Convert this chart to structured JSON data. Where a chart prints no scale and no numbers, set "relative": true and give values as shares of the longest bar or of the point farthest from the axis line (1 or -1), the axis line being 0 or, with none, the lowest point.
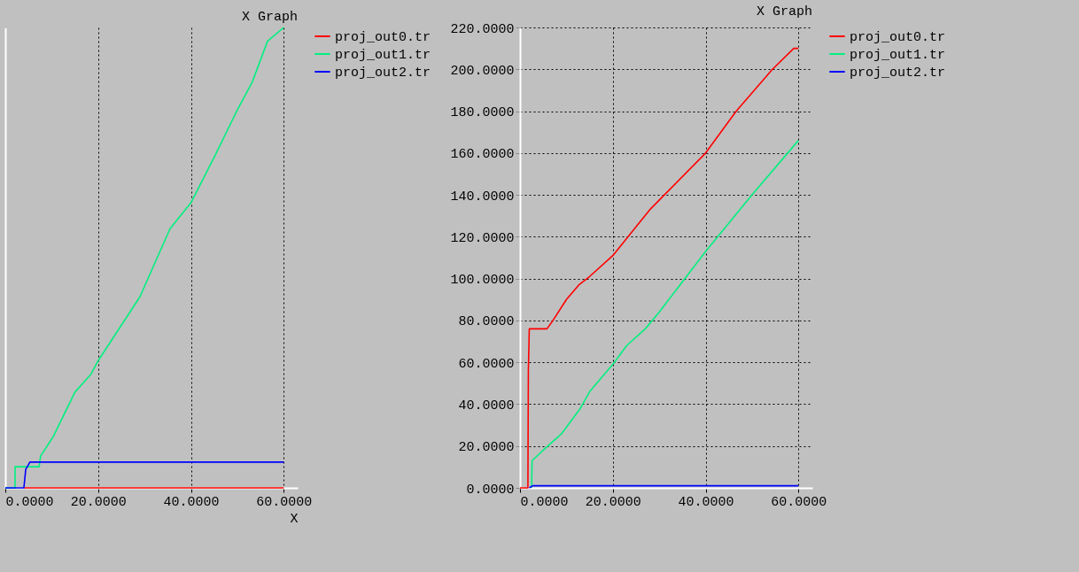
{
  "chart_data": [
    {
      "type": "line",
      "title": "X Graph",
      "xlabel": "X",
      "relative": true,
      "xlim": [
        0,
        63
      ],
      "xticks": [
        {
          "value": 0,
          "label": "0.0000"
        },
        {
          "value": 20,
          "label": "20.0000"
        },
        {
          "value": 40,
          "label": "40.0000"
        },
        {
          "value": 60,
          "label": "60.0000"
        }
      ],
      "grid": "x",
      "legend": "top right",
      "series": [
        {
          "name": "proj_out0.tr",
          "color": "#ff0000",
          "x": [
            4,
            60
          ],
          "values": [
            0,
            0
          ]
        },
        {
          "name": "proj_out1.tr",
          "color": "#00f07f",
          "x": [
            0,
            2.1,
            2.1,
            7.3,
            7.6,
            10.3,
            15,
            18.4,
            20,
            29,
            35.5,
            40,
            45.2,
            50,
            53.2,
            56.5,
            60
          ],
          "values": [
            0,
            0,
            0.046,
            0.046,
            0.069,
            0.111,
            0.208,
            0.246,
            0.276,
            0.415,
            0.563,
            0.619,
            0.722,
            0.821,
            0.881,
            0.97,
            1
          ]
        },
        {
          "name": "proj_out2.tr",
          "color": "#0000ff",
          "x": [
            0,
            4,
            4.4,
            5.3,
            60
          ],
          "values": [
            0,
            0,
            0.04,
            0.056,
            0.056
          ]
        }
      ]
    },
    {
      "type": "line",
      "title": "X Graph",
      "xlim": [
        0,
        63
      ],
      "ylim": [
        0,
        220
      ],
      "xticks": [
        {
          "value": 0,
          "label": "0.0000"
        },
        {
          "value": 20,
          "label": "20.0000"
        },
        {
          "value": 40,
          "label": "40.0000"
        },
        {
          "value": 60,
          "label": "60.0000"
        }
      ],
      "yticks": [
        {
          "value": 0,
          "label": "0.0000"
        },
        {
          "value": 20,
          "label": "20.0000"
        },
        {
          "value": 40,
          "label": "40.0000"
        },
        {
          "value": 60,
          "label": "60.0000"
        },
        {
          "value": 80,
          "label": "80.0000"
        },
        {
          "value": 100,
          "label": "100.0000"
        },
        {
          "value": 120,
          "label": "120.0000"
        },
        {
          "value": 140,
          "label": "140.0000"
        },
        {
          "value": 160,
          "label": "160.0000"
        },
        {
          "value": 180,
          "label": "180.0000"
        },
        {
          "value": 200,
          "label": "200.0000"
        },
        {
          "value": 220,
          "label": "220.0000"
        }
      ],
      "grid": true,
      "legend": "top right",
      "series": [
        {
          "name": "proj_out0.tr",
          "color": "#ff0000",
          "x": [
            0,
            1.7,
            1.8,
            2,
            5.8,
            7.1,
            10,
            12.7,
            15,
            20,
            28,
            40,
            46.6,
            54.4,
            59,
            60
          ],
          "values": [
            0,
            0,
            56,
            76,
            76,
            80,
            90,
            97,
            101,
            111,
            133,
            160,
            180,
            200,
            210,
            210
          ]
        },
        {
          "name": "proj_out1.tr",
          "color": "#00f07f",
          "x": [
            2.5,
            2.6,
            5,
            9,
            13,
            15,
            20,
            23,
            27,
            30,
            40,
            50,
            60
          ],
          "values": [
            0,
            13,
            18,
            26,
            38,
            46,
            59,
            68,
            76,
            84,
            113,
            140,
            166
          ]
        },
        {
          "name": "proj_out2.tr",
          "color": "#0000ff",
          "x": [
            2,
            2.7,
            60
          ],
          "values": [
            0,
            1,
            1
          ]
        }
      ]
    }
  ]
}
